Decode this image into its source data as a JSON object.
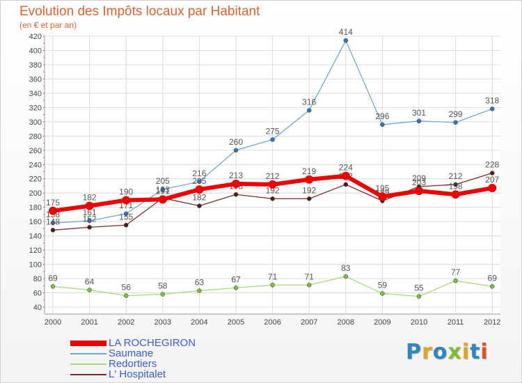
{
  "title": "Evolution des Impôts locaux par Habitant",
  "subtitle": "(en € et par an)",
  "logo": {
    "text": "Proxiti",
    "colors": [
      "#2e86c1",
      "#e8a020",
      "#2e86c1",
      "#7cbf2a",
      "#e8a020",
      "#2e86c1",
      "#e84b2a"
    ]
  },
  "chart_data": {
    "type": "line",
    "title": "Evolution des Impôts locaux par Habitant",
    "subtitle": "(en € et par an)",
    "x": [
      "2000",
      "2001",
      "2002",
      "2003",
      "2004",
      "2005",
      "2006",
      "2007",
      "2008",
      "2009",
      "2010",
      "2011",
      "2012"
    ],
    "ylim": [
      40,
      420
    ],
    "yticks": [
      40,
      60,
      80,
      100,
      120,
      140,
      160,
      180,
      200,
      220,
      240,
      260,
      280,
      300,
      320,
      340,
      360,
      380,
      400,
      420
    ],
    "grid": true,
    "legend_position": "bottom-left",
    "series": [
      {
        "name": "Saumane",
        "color": "#6ea8d6",
        "marker": "#2f78c0",
        "width": 1.3,
        "values": [
          158,
          161,
          171,
          205,
          216,
          260,
          275,
          316,
          414,
          296,
          301,
          299,
          318
        ],
        "labels": [
          "158",
          "161",
          "171",
          "205",
          "216",
          "260",
          "275",
          "316",
          "414",
          "296",
          "301",
          "299",
          "318"
        ]
      },
      {
        "name": "L' Hospitalet",
        "color": "#7a2a2a",
        "marker": "#5a1a1a",
        "width": 1.3,
        "values": [
          148,
          152,
          155,
          193,
          182,
          198,
          192,
          192,
          212,
          189,
          209,
          212,
          228
        ],
        "labels": [
          "148",
          "152",
          "155",
          "193",
          "182",
          "198",
          "192",
          "192",
          "212",
          "189",
          "209",
          "212",
          "228"
        ]
      },
      {
        "name": "Redortiers",
        "color": "#a8d878",
        "marker": "#7cc03a",
        "width": 1.3,
        "values": [
          69,
          64,
          56,
          58,
          63,
          67,
          71,
          71,
          83,
          59,
          55,
          77,
          69
        ],
        "labels": [
          "69",
          "64",
          "56",
          "58",
          "63",
          "67",
          "71",
          "71",
          "83",
          "59",
          "55",
          "77",
          "69"
        ]
      },
      {
        "name": "LA ROCHEGIRON",
        "color": "#ee0000",
        "marker": "#ee0000",
        "width": 6,
        "values": [
          175,
          182,
          190,
          191,
          205,
          213,
          212,
          219,
          224,
          195,
          203,
          198,
          207
        ],
        "labels": [
          "175",
          "182",
          "190",
          "191",
          "205",
          "213",
          "212",
          "219",
          "224",
          "195",
          "203",
          "198",
          "207"
        ]
      }
    ],
    "legend_order": [
      "LA ROCHEGIRON",
      "Saumane",
      "Redortiers",
      "L' Hospitalet"
    ]
  }
}
